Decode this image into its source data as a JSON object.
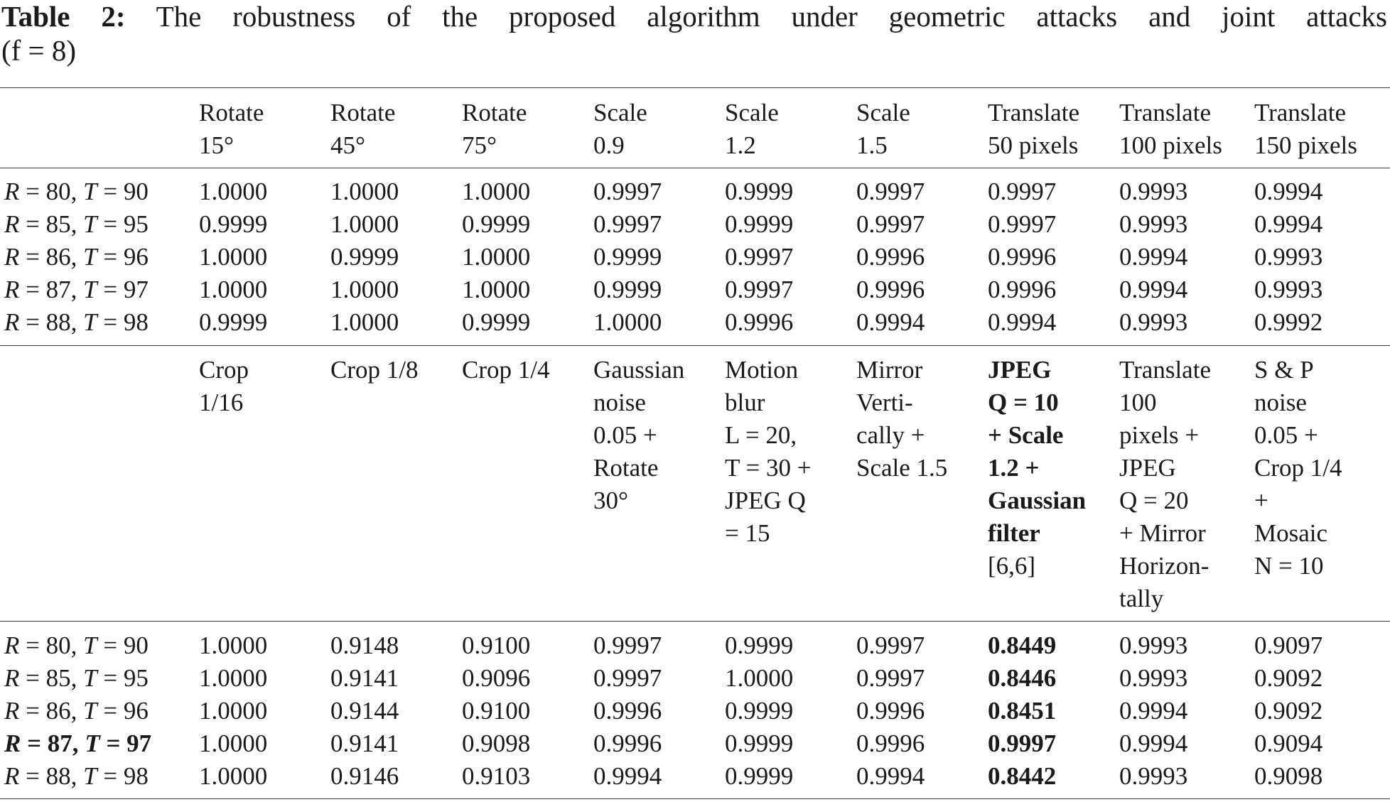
{
  "caption": {
    "label": "Table 2:",
    "text_line1": "The robustness of the proposed algorithm under geometric attacks and joint attacks",
    "text_line2": "(f = 8)"
  },
  "table1": {
    "headers": [
      "",
      "Rotate\n15°",
      "Rotate\n45°",
      "Rotate\n75°",
      "Scale\n0.9",
      "Scale\n1.2",
      "Scale\n1.5",
      "Translate\n50 pixels",
      "Translate\n100 pixels",
      "Translate\n150 pixels"
    ],
    "rows": [
      {
        "label": "R = 80, T = 90",
        "values": [
          "1.0000",
          "1.0000",
          "1.0000",
          "0.9997",
          "0.9999",
          "0.9997",
          "0.9997",
          "0.9993",
          "0.9994"
        ]
      },
      {
        "label": "R = 85, T = 95",
        "values": [
          "0.9999",
          "1.0000",
          "0.9999",
          "0.9997",
          "0.9999",
          "0.9997",
          "0.9997",
          "0.9993",
          "0.9994"
        ]
      },
      {
        "label": "R = 86, T = 96",
        "values": [
          "1.0000",
          "0.9999",
          "1.0000",
          "0.9999",
          "0.9997",
          "0.9996",
          "0.9996",
          "0.9994",
          "0.9993"
        ]
      },
      {
        "label": "R = 87, T = 97",
        "values": [
          "1.0000",
          "1.0000",
          "1.0000",
          "0.9999",
          "0.9997",
          "0.9996",
          "0.9996",
          "0.9994",
          "0.9993"
        ]
      },
      {
        "label": "R = 88, T = 98",
        "values": [
          "0.9999",
          "1.0000",
          "0.9999",
          "1.0000",
          "0.9996",
          "0.9994",
          "0.9994",
          "0.9993",
          "0.9992"
        ]
      }
    ]
  },
  "table2": {
    "headers": [
      "",
      "Crop\n1/16",
      "Crop 1/8",
      "Crop 1/4",
      "Gaussian\nnoise\n0.05 +\nRotate\n30°",
      "Motion\nblur\nL = 20,\nT = 30 +\nJPEG Q\n= 15",
      "Mirror\nVerti-\ncally +\nScale 1.5",
      "JPEG\nQ = 10\n+ Scale\n1.2 +\nGaussian\nfilter\n[6,6]",
      "Translate\n100\npixels +\nJPEG\nQ = 20\n+ Mirror\nHorizon-\ntally",
      "S & P\nnoise\n0.05 +\nCrop 1/4\n+\nMosaic\nN = 10"
    ],
    "rows": [
      {
        "label": "R = 80, T = 90",
        "values": [
          "1.0000",
          "0.9148",
          "0.9100",
          "0.9997",
          "0.9999",
          "0.9997",
          "0.8449",
          "0.9993",
          "0.9097"
        ]
      },
      {
        "label": "R = 85, T = 95",
        "values": [
          "1.0000",
          "0.9141",
          "0.9096",
          "0.9997",
          "1.0000",
          "0.9997",
          "0.8446",
          "0.9993",
          "0.9092"
        ]
      },
      {
        "label": "R = 86, T = 96",
        "values": [
          "1.0000",
          "0.9144",
          "0.9100",
          "0.9996",
          "0.9999",
          "0.9996",
          "0.8451",
          "0.9994",
          "0.9092"
        ]
      },
      {
        "label": "R = 87, T = 97",
        "values": [
          "1.0000",
          "0.9141",
          "0.9098",
          "0.9996",
          "0.9999",
          "0.9996",
          "0.9997",
          "0.9994",
          "0.9094"
        ]
      },
      {
        "label": "R = 88, T = 98",
        "values": [
          "1.0000",
          "0.9146",
          "0.9103",
          "0.9994",
          "0.9999",
          "0.9994",
          "0.8442",
          "0.9993",
          "0.9098"
        ]
      }
    ]
  }
}
